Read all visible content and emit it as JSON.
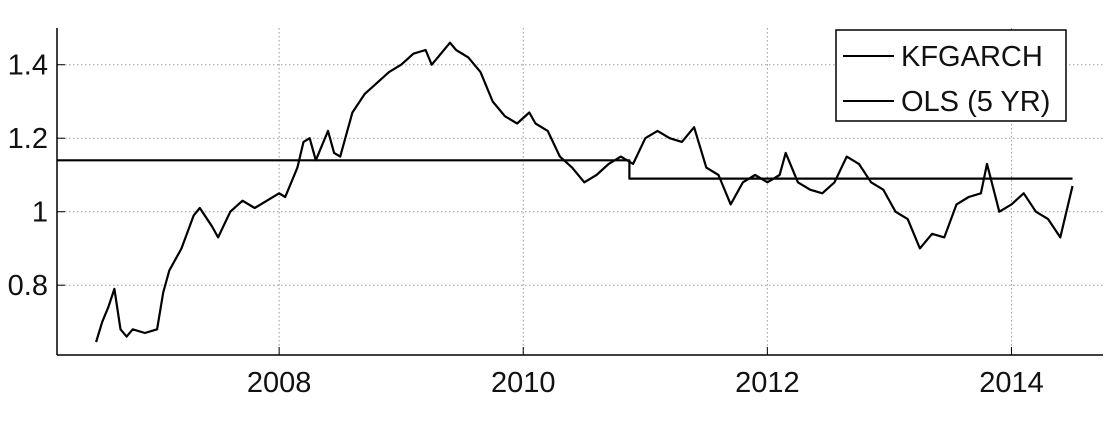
{
  "chart_data": {
    "type": "line",
    "title": "",
    "xlabel": "",
    "ylabel": "",
    "xlim": [
      2006.18,
      2014.75
    ],
    "ylim": [
      0.61,
      1.5
    ],
    "x_ticks": [
      2008,
      2010,
      2012,
      2014
    ],
    "x_tick_labels": [
      "2008",
      "2010",
      "2012",
      "2014"
    ],
    "y_ticks": [
      0.8,
      1.0,
      1.2,
      1.4
    ],
    "y_tick_labels": [
      "0.8",
      "1",
      "1.2",
      "1.4"
    ],
    "grid": true,
    "legend_position": "top-right",
    "series": [
      {
        "name": "KFGARCH",
        "color": "#000000",
        "x": [
          2006.5,
          2006.55,
          2006.6,
          2006.65,
          2006.7,
          2006.75,
          2006.8,
          2006.9,
          2007.0,
          2007.05,
          2007.1,
          2007.2,
          2007.3,
          2007.35,
          2007.45,
          2007.5,
          2007.6,
          2007.7,
          2007.8,
          2007.9,
          2008.0,
          2008.05,
          2008.1,
          2008.15,
          2008.2,
          2008.25,
          2008.3,
          2008.4,
          2008.45,
          2008.5,
          2008.6,
          2008.7,
          2008.8,
          2008.9,
          2009.0,
          2009.1,
          2009.2,
          2009.25,
          2009.3,
          2009.4,
          2009.45,
          2009.55,
          2009.65,
          2009.75,
          2009.85,
          2009.95,
          2010.05,
          2010.1,
          2010.2,
          2010.3,
          2010.4,
          2010.5,
          2010.6,
          2010.7,
          2010.8,
          2010.9,
          2011.0,
          2011.1,
          2011.2,
          2011.3,
          2011.4,
          2011.5,
          2011.6,
          2011.7,
          2011.8,
          2011.9,
          2012.0,
          2012.1,
          2012.15,
          2012.25,
          2012.35,
          2012.45,
          2012.55,
          2012.65,
          2012.75,
          2012.85,
          2012.95,
          2013.05,
          2013.15,
          2013.25,
          2013.35,
          2013.45,
          2013.55,
          2013.65,
          2013.75,
          2013.8,
          2013.9,
          2014.0,
          2014.1,
          2014.2,
          2014.3,
          2014.4,
          2014.5
        ],
        "y": [
          0.645,
          0.7,
          0.74,
          0.79,
          0.68,
          0.66,
          0.68,
          0.67,
          0.68,
          0.78,
          0.84,
          0.9,
          0.99,
          1.01,
          0.96,
          0.93,
          1.0,
          1.03,
          1.01,
          1.03,
          1.05,
          1.04,
          1.08,
          1.12,
          1.19,
          1.2,
          1.14,
          1.22,
          1.16,
          1.15,
          1.27,
          1.32,
          1.35,
          1.38,
          1.4,
          1.43,
          1.44,
          1.4,
          1.42,
          1.46,
          1.44,
          1.42,
          1.38,
          1.3,
          1.26,
          1.24,
          1.27,
          1.24,
          1.22,
          1.15,
          1.12,
          1.08,
          1.1,
          1.13,
          1.15,
          1.13,
          1.2,
          1.22,
          1.2,
          1.19,
          1.23,
          1.12,
          1.1,
          1.02,
          1.08,
          1.1,
          1.08,
          1.1,
          1.16,
          1.08,
          1.06,
          1.05,
          1.08,
          1.15,
          1.13,
          1.08,
          1.06,
          1.0,
          0.98,
          0.9,
          0.94,
          0.93,
          1.02,
          1.04,
          1.05,
          1.13,
          1.0,
          1.02,
          1.05,
          1.0,
          0.98,
          0.93,
          1.07
        ]
      },
      {
        "name": "OLS (5 YR)",
        "color": "#000000",
        "x": [
          2006.18,
          2010.87,
          2010.87,
          2014.5
        ],
        "y": [
          1.14,
          1.14,
          1.09,
          1.09
        ]
      }
    ]
  }
}
